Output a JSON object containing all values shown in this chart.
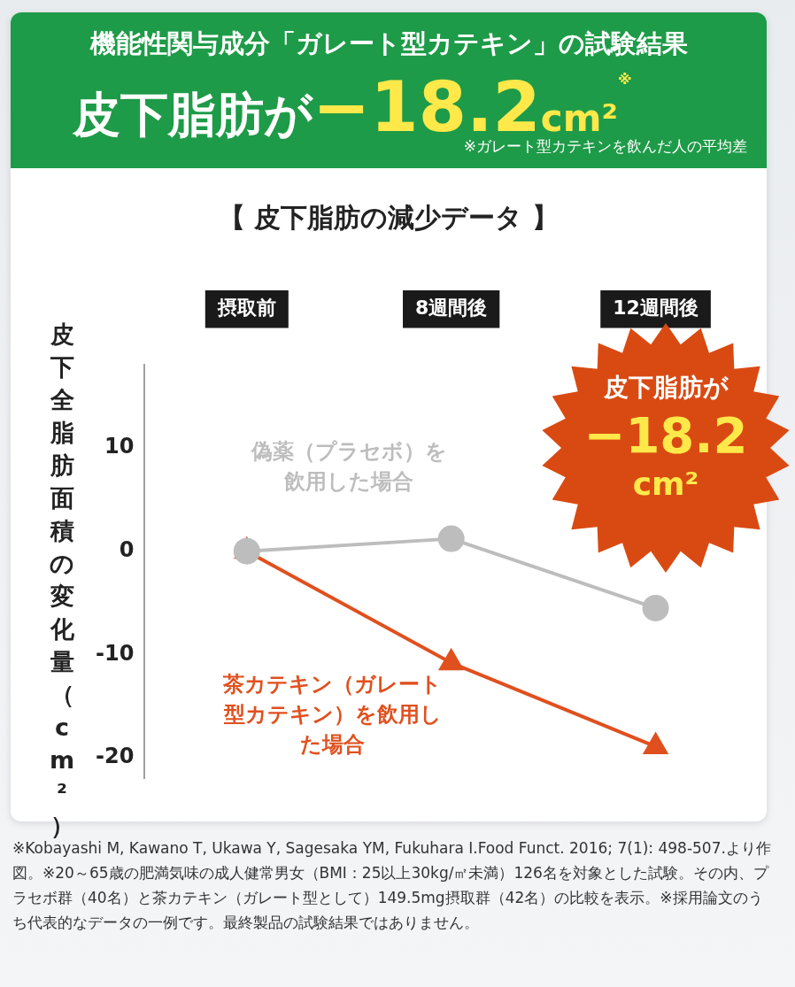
{
  "chart_data": {
    "type": "line",
    "title": "機能性関与成分「ガレート型カテキン」の試験結果",
    "subtitle": "【 皮下脂肪の減少データ 】",
    "ylabel": "皮下全脂肪面積の変化量（cm²）",
    "categories": [
      "摂取前",
      "8週間後",
      "12週間後"
    ],
    "series": [
      {
        "name": "偽薬（プラセボ）を飲用した場合",
        "color": "#bdbdbd",
        "values": [
          0,
          1.2,
          -5.5
        ],
        "marker": "circle"
      },
      {
        "name": "茶カテキン（ガレート型カテキン）を飲用した場合",
        "color": "#e0501e",
        "values": [
          0,
          -10.8,
          -18.9
        ],
        "marker": "triangle"
      }
    ],
    "ylim": [
      -22,
      18
    ],
    "yticks": [
      -20,
      -10,
      0,
      10
    ],
    "grid": false,
    "legend": false,
    "line_style": "solid",
    "annotations": [
      "皮下脂肪が",
      "−18.2",
      "cm²",
      "※",
      "※ガレート型カテキンを飲んだ人の平均差",
      "皮下脂肪が",
      "−18.2",
      "cm²",
      "※Kobayashi M, Kawano T, Ukawa Y, Sagesaka YM, Fukuhara I.Food Funct. 2016; 7(1): 498-507.より作図。※20～65歳の肥満気味の成人健常男女（BMI：25以上30kg/㎡未満）126名を対象とした試験。その内、プラセボ群（40名）と茶カテキン（ガレート型として）149.5mg摂取群（42名）の比較を表示。※採用論文のうち代表的なデータの一例です。最終製品の試験結果ではありません。"
    ]
  }
}
